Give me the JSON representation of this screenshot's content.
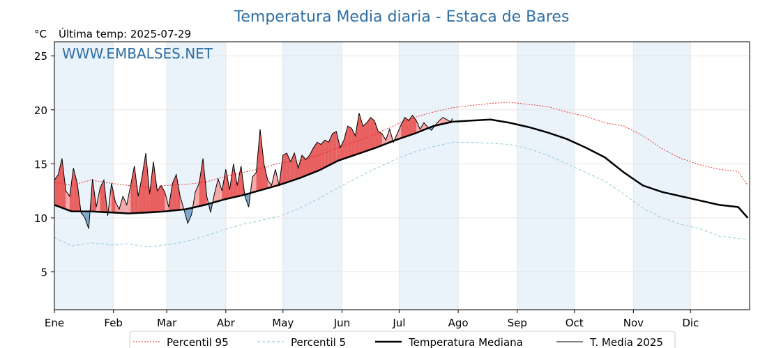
{
  "chart_data": {
    "type": "line",
    "title": "Temperatura Media diaria - Estaca de Bares",
    "unit_label": "°C",
    "last_temp_label": "Última temp: 2025-07-29",
    "watermark": "WWW.EMBALSES.NET",
    "ylim": [
      1.5,
      26.3
    ],
    "yticks": [
      5,
      10,
      15,
      20,
      25
    ],
    "months": [
      "Ene",
      "Feb",
      "Mar",
      "Abr",
      "May",
      "Jun",
      "Jul",
      "Ago",
      "Sep",
      "Oct",
      "Nov",
      "Dic"
    ],
    "month_start_days": [
      1,
      32,
      60,
      91,
      121,
      152,
      182,
      213,
      244,
      274,
      305,
      335
    ],
    "days_in_year": 365,
    "grid": true,
    "legend_placement": "bottom-center",
    "colors": {
      "p95": "#e8261f",
      "p5": "#9ccfe0",
      "median": "#000000",
      "current": "#000000",
      "above_fill": "#f6a9a9",
      "above_strong": "#e86060",
      "below_fill": "#7fa8c9",
      "band": "#eaf2fa",
      "title": "#2f6fa3"
    },
    "series": [
      {
        "name": "Percentil 95",
        "style": "dotted",
        "day": [
          1,
          10,
          20,
          31,
          40,
          50,
          59,
          70,
          80,
          90,
          100,
          110,
          120,
          130,
          140,
          150,
          160,
          170,
          180,
          190,
          200,
          210,
          220,
          230,
          240,
          250,
          260,
          270,
          280,
          290,
          300,
          310,
          320,
          330,
          340,
          350,
          360,
          365
        ],
        "values": [
          13.3,
          13.0,
          13.5,
          13.2,
          13.0,
          12.8,
          13.0,
          13.1,
          13.3,
          13.8,
          14.2,
          14.6,
          15.1,
          15.3,
          15.8,
          16.5,
          17.1,
          17.8,
          18.6,
          19.3,
          19.8,
          20.2,
          20.4,
          20.6,
          20.7,
          20.5,
          20.3,
          19.8,
          19.4,
          18.8,
          18.5,
          17.6,
          16.4,
          15.5,
          14.9,
          14.5,
          14.3,
          13.0
        ]
      },
      {
        "name": "Percentil 5",
        "style": "dashed",
        "day": [
          1,
          10,
          20,
          31,
          40,
          50,
          59,
          70,
          80,
          90,
          100,
          110,
          120,
          130,
          140,
          150,
          160,
          170,
          180,
          190,
          200,
          210,
          220,
          230,
          240,
          250,
          260,
          270,
          280,
          290,
          300,
          310,
          320,
          330,
          340,
          350,
          360,
          365
        ],
        "values": [
          8.2,
          7.4,
          7.7,
          7.5,
          7.6,
          7.3,
          7.5,
          7.8,
          8.3,
          8.9,
          9.4,
          9.8,
          10.2,
          10.9,
          11.8,
          12.8,
          13.7,
          14.6,
          15.4,
          16.1,
          16.6,
          17.0,
          17.0,
          16.9,
          16.8,
          16.4,
          15.8,
          15.0,
          14.2,
          13.4,
          12.2,
          10.9,
          10.0,
          9.4,
          9.0,
          8.3,
          8.1,
          8.0
        ]
      },
      {
        "name": "Temperatura Mediana",
        "style": "solid-thick",
        "day": [
          1,
          10,
          20,
          31,
          40,
          50,
          59,
          70,
          80,
          90,
          100,
          110,
          120,
          130,
          140,
          150,
          160,
          170,
          180,
          190,
          200,
          210,
          220,
          230,
          240,
          250,
          260,
          270,
          280,
          290,
          300,
          310,
          320,
          330,
          340,
          350,
          360,
          365
        ],
        "values": [
          11.2,
          10.6,
          10.6,
          10.5,
          10.4,
          10.5,
          10.6,
          10.8,
          11.2,
          11.7,
          12.1,
          12.6,
          13.1,
          13.7,
          14.4,
          15.3,
          15.9,
          16.5,
          17.2,
          17.8,
          18.5,
          18.9,
          19.0,
          19.1,
          18.8,
          18.4,
          17.9,
          17.3,
          16.5,
          15.6,
          14.2,
          13.0,
          12.4,
          12.0,
          11.6,
          11.2,
          11.0,
          10.0
        ]
      },
      {
        "name": "T. Media 2025",
        "style": "solid-thin",
        "day": [
          1,
          3,
          5,
          7,
          9,
          11,
          13,
          15,
          17,
          19,
          21,
          23,
          25,
          27,
          29,
          31,
          33,
          35,
          37,
          39,
          41,
          43,
          45,
          47,
          49,
          51,
          53,
          55,
          57,
          59,
          61,
          63,
          65,
          67,
          69,
          71,
          73,
          75,
          77,
          79,
          81,
          83,
          85,
          87,
          89,
          91,
          93,
          95,
          97,
          99,
          101,
          103,
          105,
          107,
          109,
          111,
          113,
          115,
          117,
          119,
          121,
          123,
          125,
          127,
          129,
          131,
          133,
          135,
          137,
          139,
          141,
          143,
          145,
          147,
          149,
          151,
          153,
          155,
          157,
          159,
          161,
          163,
          165,
          167,
          169,
          171,
          173,
          175,
          177,
          179,
          181,
          183,
          185,
          187,
          189,
          191,
          193,
          195,
          197,
          199,
          201,
          203,
          205,
          207,
          209,
          210
        ],
        "values": [
          13.5,
          14.0,
          15.5,
          12.5,
          12.0,
          14.6,
          13.2,
          10.5,
          10.0,
          9.0,
          13.6,
          11.0,
          12.8,
          13.5,
          10.2,
          13.2,
          11.5,
          10.8,
          12.0,
          11.2,
          13.0,
          14.8,
          12.0,
          13.8,
          16.0,
          12.2,
          15.2,
          12.5,
          13.0,
          12.4,
          11.0,
          13.2,
          14.0,
          12.0,
          10.8,
          9.5,
          10.3,
          12.4,
          13.2,
          15.5,
          12.0,
          10.5,
          12.2,
          13.6,
          12.5,
          14.5,
          12.6,
          15.0,
          13.0,
          14.8,
          12.0,
          11.0,
          13.8,
          14.2,
          18.2,
          15.0,
          13.5,
          13.0,
          14.5,
          13.0,
          15.8,
          16.0,
          15.2,
          16.0,
          14.6,
          15.8,
          15.4,
          15.8,
          16.5,
          17.0,
          16.8,
          17.2,
          17.0,
          17.8,
          18.0,
          16.5,
          17.2,
          18.5,
          18.3,
          17.6,
          19.7,
          18.5,
          18.8,
          19.3,
          19.0,
          18.0,
          17.8,
          17.2,
          18.2,
          17.0,
          17.8,
          18.6,
          19.3,
          19.0,
          19.5,
          19.0,
          18.2,
          18.8,
          18.4,
          18.1,
          18.6,
          19.0,
          19.3,
          19.1,
          18.9,
          19.2
        ]
      }
    ]
  },
  "legend": [
    {
      "label": "Percentil 95",
      "color": "#e8261f",
      "style": "dotted"
    },
    {
      "label": "Percentil 5",
      "color": "#9ccfe0",
      "style": "dashed"
    },
    {
      "label": "Temperatura Mediana",
      "color": "#000000",
      "style": "solid-thick"
    },
    {
      "label": "T. Media 2025",
      "color": "#000000",
      "style": "solid-thin"
    }
  ]
}
